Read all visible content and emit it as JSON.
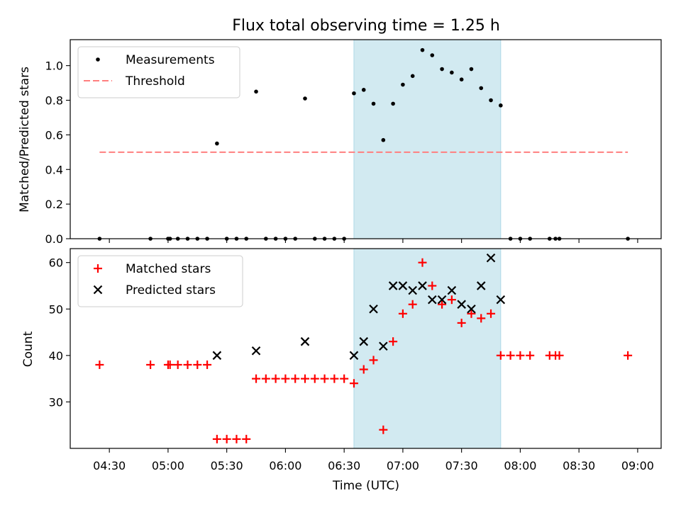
{
  "chart_data": [
    {
      "type": "scatter",
      "title": "Flux total observing time = 1.25 h",
      "xlabel": "",
      "ylabel": "Matched/Predicted stars",
      "xlim": [
        "04:10",
        "09:12"
      ],
      "ylim": [
        0,
        1.15
      ],
      "yticks": [
        0.0,
        0.2,
        0.4,
        0.6,
        0.8,
        1.0
      ],
      "yticklabels": [
        "0.0",
        "0.2",
        "0.4",
        "0.6",
        "0.8",
        "1.0"
      ],
      "xticks": [
        "04:30",
        "05:00",
        "05:30",
        "06:00",
        "06:30",
        "07:00",
        "07:30",
        "08:00",
        "08:30",
        "09:00"
      ],
      "grid": false,
      "legend": "upper-left",
      "shaded_interval": {
        "start": "06:35",
        "end": "07:50",
        "color": "#add8e6"
      },
      "threshold": {
        "name": "Threshold",
        "value": 0.5,
        "start": "04:25",
        "end": "08:55",
        "color": "#ff7f7f"
      },
      "series": [
        {
          "name": "Measurements",
          "color": "#000000",
          "marker": "dot",
          "points": [
            [
              "04:25",
              0
            ],
            [
              "04:51",
              0
            ],
            [
              "05:00",
              0
            ],
            [
              "05:01",
              0
            ],
            [
              "05:05",
              0
            ],
            [
              "05:10",
              0
            ],
            [
              "05:15",
              0
            ],
            [
              "05:20",
              0
            ],
            [
              "05:25",
              0.55
            ],
            [
              "05:30",
              0
            ],
            [
              "05:35",
              0
            ],
            [
              "05:40",
              0
            ],
            [
              "05:45",
              0.85
            ],
            [
              "05:50",
              0
            ],
            [
              "05:55",
              0
            ],
            [
              "06:00",
              0
            ],
            [
              "06:05",
              0
            ],
            [
              "06:10",
              0.81
            ],
            [
              "06:15",
              0
            ],
            [
              "06:20",
              0
            ],
            [
              "06:25",
              0
            ],
            [
              "06:30",
              0
            ],
            [
              "06:35",
              0.84
            ],
            [
              "06:40",
              0.86
            ],
            [
              "06:45",
              0.78
            ],
            [
              "06:50",
              0.57
            ],
            [
              "06:55",
              0.78
            ],
            [
              "07:00",
              0.89
            ],
            [
              "07:05",
              0.94
            ],
            [
              "07:10",
              1.09
            ],
            [
              "07:15",
              1.06
            ],
            [
              "07:20",
              0.98
            ],
            [
              "07:25",
              0.96
            ],
            [
              "07:30",
              0.92
            ],
            [
              "07:35",
              0.98
            ],
            [
              "07:40",
              0.87
            ],
            [
              "07:45",
              0.8
            ],
            [
              "07:50",
              0.77
            ],
            [
              "07:55",
              0
            ],
            [
              "08:00",
              0
            ],
            [
              "08:05",
              0
            ],
            [
              "08:15",
              0
            ],
            [
              "08:18",
              0
            ],
            [
              "08:20",
              0
            ],
            [
              "08:55",
              0
            ]
          ]
        }
      ]
    },
    {
      "type": "scatter",
      "title": "",
      "xlabel": "Time (UTC)",
      "ylabel": "Count",
      "xlim": [
        "04:10",
        "09:12"
      ],
      "ylim": [
        20,
        63
      ],
      "yticks": [
        30,
        40,
        50,
        60
      ],
      "yticklabels": [
        "30",
        "40",
        "50",
        "60"
      ],
      "xticks": [
        "04:30",
        "05:00",
        "05:30",
        "06:00",
        "06:30",
        "07:00",
        "07:30",
        "08:00",
        "08:30",
        "09:00"
      ],
      "grid": false,
      "legend": "upper-left",
      "shaded_interval": {
        "start": "06:35",
        "end": "07:50",
        "color": "#add8e6"
      },
      "series": [
        {
          "name": "Matched stars",
          "color": "#ff0000",
          "marker": "plus",
          "points": [
            [
              "04:25",
              38
            ],
            [
              "04:51",
              38
            ],
            [
              "05:00",
              38
            ],
            [
              "05:01",
              38
            ],
            [
              "05:05",
              38
            ],
            [
              "05:10",
              38
            ],
            [
              "05:15",
              38
            ],
            [
              "05:20",
              38
            ],
            [
              "05:25",
              22
            ],
            [
              "05:30",
              22
            ],
            [
              "05:35",
              22
            ],
            [
              "05:40",
              22
            ],
            [
              "05:45",
              35
            ],
            [
              "05:50",
              35
            ],
            [
              "05:55",
              35
            ],
            [
              "06:00",
              35
            ],
            [
              "06:05",
              35
            ],
            [
              "06:10",
              35
            ],
            [
              "06:15",
              35
            ],
            [
              "06:20",
              35
            ],
            [
              "06:25",
              35
            ],
            [
              "06:30",
              35
            ],
            [
              "06:35",
              34
            ],
            [
              "06:40",
              37
            ],
            [
              "06:45",
              39
            ],
            [
              "06:50",
              24
            ],
            [
              "06:55",
              43
            ],
            [
              "07:00",
              49
            ],
            [
              "07:05",
              51
            ],
            [
              "07:10",
              60
            ],
            [
              "07:15",
              55
            ],
            [
              "07:20",
              51
            ],
            [
              "07:25",
              52
            ],
            [
              "07:30",
              47
            ],
            [
              "07:35",
              49
            ],
            [
              "07:40",
              48
            ],
            [
              "07:45",
              49
            ],
            [
              "07:50",
              40
            ],
            [
              "07:55",
              40
            ],
            [
              "08:00",
              40
            ],
            [
              "08:05",
              40
            ],
            [
              "08:15",
              40
            ],
            [
              "08:18",
              40
            ],
            [
              "08:20",
              40
            ],
            [
              "08:55",
              40
            ]
          ]
        },
        {
          "name": "Predicted stars",
          "color": "#000000",
          "marker": "x",
          "points": [
            [
              "05:25",
              40
            ],
            [
              "05:45",
              41
            ],
            [
              "06:10",
              43
            ],
            [
              "06:35",
              40
            ],
            [
              "06:40",
              43
            ],
            [
              "06:45",
              50
            ],
            [
              "06:50",
              42
            ],
            [
              "06:55",
              55
            ],
            [
              "07:00",
              55
            ],
            [
              "07:05",
              54
            ],
            [
              "07:10",
              55
            ],
            [
              "07:15",
              52
            ],
            [
              "07:20",
              52
            ],
            [
              "07:25",
              54
            ],
            [
              "07:30",
              51
            ],
            [
              "07:35",
              50
            ],
            [
              "07:40",
              55
            ],
            [
              "07:45",
              61
            ],
            [
              "07:50",
              52
            ]
          ]
        }
      ]
    }
  ]
}
